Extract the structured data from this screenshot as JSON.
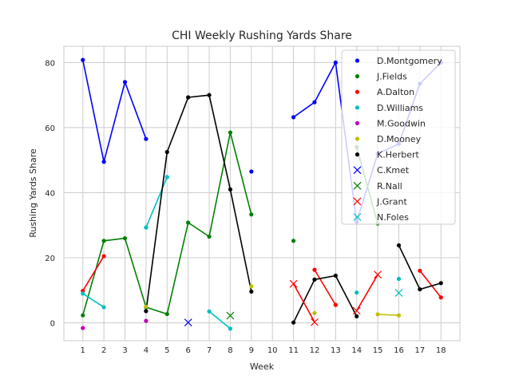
{
  "chart_data": {
    "type": "line",
    "title": "CHI Weekly Rushing Yards Share",
    "xlabel": "Week",
    "ylabel": "Rushing Yards Share",
    "xlim": [
      0.1,
      18.9
    ],
    "ylim": [
      -5.5,
      85
    ],
    "x_ticks": [
      1,
      2,
      3,
      4,
      5,
      6,
      7,
      8,
      9,
      10,
      11,
      12,
      13,
      14,
      15,
      16,
      17,
      18
    ],
    "y_ticks": [
      0,
      20,
      40,
      60,
      80
    ],
    "grid": true,
    "legend_position": "top-right",
    "series": [
      {
        "name": "D.Montgomery",
        "color": "#0000ff",
        "marker": "dot",
        "points": [
          [
            1,
            80.8
          ],
          [
            2,
            49.5
          ],
          [
            3,
            74.0
          ],
          [
            4,
            56.5
          ],
          [
            9,
            46.5
          ],
          [
            11,
            63.2
          ],
          [
            12,
            67.8
          ],
          [
            13,
            80.0
          ],
          [
            14,
            31.0
          ],
          [
            15,
            52.0
          ],
          [
            16,
            55.0
          ],
          [
            17,
            73.5
          ],
          [
            18,
            80.0
          ]
        ],
        "segments": [
          [
            1,
            2,
            3,
            4
          ],
          [
            11,
            12,
            13,
            14,
            15,
            16,
            17,
            18
          ]
        ]
      },
      {
        "name": "J.Fields",
        "color": "#008000",
        "marker": "dot",
        "points": [
          [
            1,
            2.3
          ],
          [
            2,
            25.2
          ],
          [
            3,
            26.0
          ],
          [
            4,
            4.8
          ],
          [
            5,
            2.7
          ],
          [
            6,
            30.8
          ],
          [
            7,
            26.5
          ],
          [
            8,
            58.5
          ],
          [
            9,
            33.3
          ],
          [
            11,
            25.2
          ],
          [
            14,
            54.0
          ],
          [
            15,
            30.5
          ]
        ],
        "segments": [
          [
            1,
            2,
            3,
            4,
            5,
            6,
            7,
            8,
            9
          ],
          [
            14,
            15
          ]
        ]
      },
      {
        "name": "A.Dalton",
        "color": "#ff0000",
        "marker": "dot",
        "points": [
          [
            1,
            9.8
          ],
          [
            2,
            20.5
          ],
          [
            12,
            16.3
          ],
          [
            13,
            5.5
          ],
          [
            17,
            16.0
          ],
          [
            18,
            7.8
          ]
        ],
        "segments": [
          [
            1,
            2
          ],
          [
            12,
            13
          ],
          [
            17,
            18
          ]
        ]
      },
      {
        "name": "D.Williams",
        "color": "#00bfbf",
        "marker": "dot",
        "points": [
          [
            1,
            9.0
          ],
          [
            2,
            4.8
          ],
          [
            4,
            29.3
          ],
          [
            5,
            44.8
          ],
          [
            7,
            3.5
          ],
          [
            8,
            -1.8
          ],
          [
            14,
            9.3
          ],
          [
            16,
            13.5
          ]
        ],
        "segments": [
          [
            1,
            2
          ],
          [
            4,
            5
          ],
          [
            7,
            8
          ]
        ]
      },
      {
        "name": "M.Goodwin",
        "color": "#bf00bf",
        "marker": "dot",
        "points": [
          [
            1,
            -1.6
          ],
          [
            4,
            0.6
          ]
        ],
        "segments": []
      },
      {
        "name": "D.Mooney",
        "color": "#bfbf00",
        "marker": "dot",
        "points": [
          [
            4,
            5.0
          ],
          [
            9,
            11.2
          ],
          [
            12,
            3.0
          ],
          [
            15,
            2.6
          ],
          [
            16,
            2.3
          ]
        ],
        "segments": [
          [
            15,
            16
          ]
        ]
      },
      {
        "name": "K.Herbert",
        "color": "#000000",
        "marker": "dot",
        "points": [
          [
            4,
            3.6
          ],
          [
            5,
            52.5
          ],
          [
            6,
            69.3
          ],
          [
            7,
            70.0
          ],
          [
            8,
            41.0
          ],
          [
            9,
            9.6
          ],
          [
            11,
            0.1
          ],
          [
            12,
            13.3
          ],
          [
            13,
            14.5
          ],
          [
            14,
            2.0
          ],
          [
            16,
            23.8
          ],
          [
            17,
            10.3
          ],
          [
            18,
            12.2
          ]
        ],
        "segments": [
          [
            4,
            5,
            6,
            7,
            8,
            9
          ],
          [
            11,
            12,
            13,
            14
          ],
          [
            16,
            17,
            18
          ]
        ]
      },
      {
        "name": "C.Kmet",
        "color": "#0000ff",
        "marker": "x",
        "points": [
          [
            6,
            0.1
          ]
        ],
        "segments": []
      },
      {
        "name": "R.Nall",
        "color": "#008000",
        "marker": "x",
        "points": [
          [
            8,
            2.2
          ]
        ],
        "segments": []
      },
      {
        "name": "J.Grant",
        "color": "#ff0000",
        "marker": "x",
        "points": [
          [
            11,
            12.0
          ],
          [
            12,
            0.2
          ],
          [
            14,
            3.7
          ],
          [
            15,
            14.8
          ]
        ],
        "segments": [
          [
            11,
            12
          ],
          [
            14,
            15
          ]
        ]
      },
      {
        "name": "N.Foles",
        "color": "#00bfbf",
        "marker": "x",
        "points": [
          [
            16,
            9.2
          ]
        ],
        "segments": []
      }
    ]
  }
}
